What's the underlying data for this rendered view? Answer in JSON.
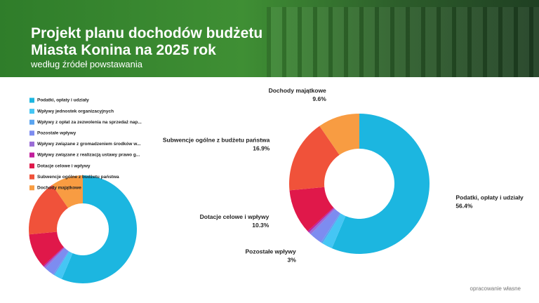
{
  "header": {
    "title": "Projekt planu dochodów budżetu Miasta Konina na 2025 rok",
    "subtitle": "według źródeł powstawania"
  },
  "footer": "opracowanie własne",
  "chart_data": [
    {
      "type": "donut",
      "legend": "top-left",
      "categories": [
        "Podatki, opłaty i udziały",
        "Wpływy jednostek organizacyjnych",
        "Wpływy z opłat za zezwolenia na sprzedaż nap...",
        "Pozostałe wpływy",
        "Wpływy związane z gromadzeniem środków w...",
        "Wpływy związane z realizacją ustawy prawo g...",
        "Dotacje celowe i wpływy",
        "Subwencje ogólne z budżetu państwa",
        "Dochody majątkowe"
      ],
      "values": [
        56.4,
        2.4,
        0.4,
        3,
        0.6,
        0.4,
        10.3,
        16.9,
        9.6
      ],
      "colors": [
        "#1cb6e0",
        "#45c6f4",
        "#5aa4f0",
        "#7d8cf0",
        "#9a6cd6",
        "#c21e9c",
        "#e0184a",
        "#f0523a",
        "#f89c42"
      ]
    },
    {
      "type": "donut",
      "categories": [
        "Podatki, opłaty i udziały",
        null,
        null,
        "Pozostałe wpływy",
        null,
        null,
        "Dotacje celowe i wpływy",
        "Subwencje ogólne z budżetu państwa",
        "Dochody majątkowe"
      ],
      "values": [
        56.4,
        2.4,
        0.4,
        3,
        0.6,
        0.4,
        10.3,
        16.9,
        9.6
      ],
      "value_labels": [
        "56.4%",
        null,
        null,
        "3%",
        null,
        null,
        "10.3%",
        "16.9%",
        "9.6%"
      ],
      "colors": [
        "#1cb6e0",
        "#45c6f4",
        "#5aa4f0",
        "#7d8cf0",
        "#9a6cd6",
        "#c21e9c",
        "#e0184a",
        "#f0523a",
        "#f89c42"
      ]
    }
  ]
}
